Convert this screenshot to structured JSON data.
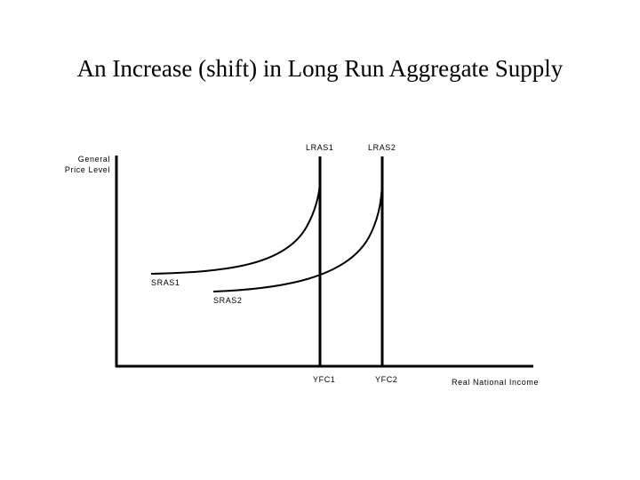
{
  "title": "An Increase (shift) in Long Run Aggregate Supply",
  "axes": {
    "y_label_line1": "General",
    "y_label_line2": "Price Level",
    "x_label": "Real National Income"
  },
  "curves": {
    "lras1_label": "LRAS1",
    "lras2_label": "LRAS2",
    "sras1_label": "SRAS1",
    "sras2_label": "SRAS2"
  },
  "ticks": {
    "yfc1_label": "YFC1",
    "yfc2_label": "YFC2"
  }
}
